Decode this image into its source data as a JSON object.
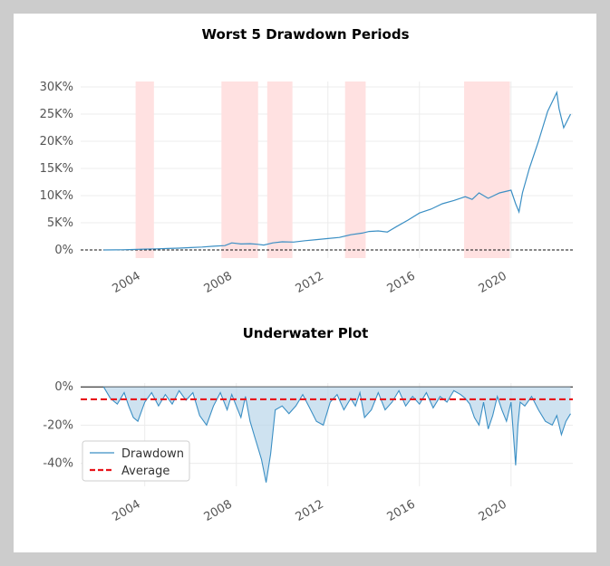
{
  "colors": {
    "line": "#3b8fc4",
    "fill": "#b9d6ea",
    "shade": "#ffe1e1",
    "average": "#e8141b",
    "grid": "#ececec",
    "zero": "#111111"
  },
  "chart_data": [
    {
      "type": "line",
      "title": "Worst 5 Drawdown Periods",
      "xlabel": "",
      "ylabel": "",
      "xlim": [
        2001.2,
        2022.7
      ],
      "ylim": [
        -1500,
        31000
      ],
      "x_ticks": [
        2004,
        2008,
        2012,
        2016,
        2020
      ],
      "x_tick_labels": [
        "2004",
        "2008",
        "2012",
        "2016",
        "2020"
      ],
      "y_ticks": [
        0,
        5000,
        10000,
        15000,
        20000,
        25000,
        30000
      ],
      "y_tick_labels": [
        "0%",
        "5K%",
        "10K%",
        "15K%",
        "20K%",
        "25K%",
        "30K%"
      ],
      "grid": true,
      "zero_line": true,
      "series": [
        {
          "x": [
            2002.2,
            2003.0,
            2003.5,
            2004.0,
            2004.5,
            2005.0,
            2005.5,
            2006.0,
            2006.5,
            2007.0,
            2007.5,
            2007.8,
            2008.2,
            2008.6,
            2008.9,
            2009.2,
            2009.6,
            2010.0,
            2010.5,
            2011.0,
            2011.5,
            2012.0,
            2012.5,
            2013.0,
            2013.5,
            2013.8,
            2014.2,
            2014.6,
            2015.0,
            2015.5,
            2016.0,
            2016.5,
            2017.0,
            2017.5,
            2018.0,
            2018.3,
            2018.6,
            2019.0,
            2019.5,
            2020.0,
            2020.2,
            2020.35,
            2020.5,
            2020.8,
            2021.2,
            2021.6,
            2022.0,
            2022.1,
            2022.3,
            2022.6
          ],
          "values": [
            0,
            30,
            80,
            150,
            200,
            260,
            330,
            430,
            530,
            680,
            800,
            1300,
            1100,
            1150,
            1050,
            900,
            1300,
            1500,
            1450,
            1700,
            1900,
            2100,
            2300,
            2800,
            3100,
            3400,
            3500,
            3300,
            4300,
            5500,
            6800,
            7500,
            8500,
            9100,
            9800,
            9300,
            10500,
            9500,
            10500,
            11000,
            8500,
            7000,
            10500,
            15000,
            20000,
            25500,
            29000,
            26000,
            22500,
            25000
          ]
        }
      ],
      "shaded_periods": [
        [
          2003.6,
          2004.4
        ],
        [
          2007.35,
          2008.95
        ],
        [
          2009.35,
          2010.45
        ],
        [
          2012.75,
          2013.65
        ],
        [
          2017.95,
          2019.95
        ]
      ]
    },
    {
      "type": "area",
      "title": "Underwater Plot",
      "xlabel": "",
      "ylabel": "",
      "xlim": [
        2001.2,
        2022.7
      ],
      "ylim": [
        -0.52,
        0.02
      ],
      "x_ticks": [
        2004,
        2008,
        2012,
        2016,
        2020
      ],
      "x_tick_labels": [
        "2004",
        "2008",
        "2012",
        "2016",
        "2020"
      ],
      "y_ticks": [
        0,
        -0.2,
        -0.4
      ],
      "y_tick_labels": [
        "0%",
        "-20%",
        "-40%"
      ],
      "grid": true,
      "legend": {
        "placement": "lower-left",
        "entries": [
          "Drawdown",
          "Average"
        ]
      },
      "series": [
        {
          "name": "Drawdown",
          "x": [
            2002.2,
            2002.5,
            2002.8,
            2003.1,
            2003.3,
            2003.5,
            2003.7,
            2004.0,
            2004.3,
            2004.6,
            2004.9,
            2005.2,
            2005.5,
            2005.8,
            2006.1,
            2006.4,
            2006.7,
            2007.0,
            2007.3,
            2007.6,
            2007.8,
            2008.0,
            2008.2,
            2008.4,
            2008.6,
            2008.8,
            2008.9,
            2009.1,
            2009.3,
            2009.5,
            2009.7,
            2010.0,
            2010.3,
            2010.6,
            2010.9,
            2011.2,
            2011.5,
            2011.8,
            2012.1,
            2012.4,
            2012.7,
            2013.0,
            2013.2,
            2013.4,
            2013.6,
            2013.9,
            2014.2,
            2014.5,
            2014.8,
            2015.1,
            2015.4,
            2015.7,
            2016.0,
            2016.3,
            2016.6,
            2016.9,
            2017.2,
            2017.5,
            2017.8,
            2018.0,
            2018.2,
            2018.4,
            2018.6,
            2018.8,
            2019.0,
            2019.2,
            2019.4,
            2019.6,
            2019.8,
            2020.0,
            2020.1,
            2020.2,
            2020.3,
            2020.4,
            2020.6,
            2020.9,
            2021.2,
            2021.5,
            2021.8,
            2022.0,
            2022.2,
            2022.4,
            2022.6
          ],
          "values": [
            0,
            -0.06,
            -0.09,
            -0.03,
            -0.1,
            -0.16,
            -0.18,
            -0.08,
            -0.03,
            -0.1,
            -0.04,
            -0.09,
            -0.02,
            -0.07,
            -0.03,
            -0.15,
            -0.2,
            -0.1,
            -0.03,
            -0.12,
            -0.04,
            -0.1,
            -0.16,
            -0.05,
            -0.18,
            -0.26,
            -0.3,
            -0.38,
            -0.5,
            -0.35,
            -0.12,
            -0.1,
            -0.14,
            -0.1,
            -0.04,
            -0.11,
            -0.18,
            -0.2,
            -0.08,
            -0.04,
            -0.12,
            -0.06,
            -0.1,
            -0.03,
            -0.16,
            -0.12,
            -0.03,
            -0.12,
            -0.08,
            -0.02,
            -0.1,
            -0.05,
            -0.09,
            -0.03,
            -0.11,
            -0.05,
            -0.08,
            -0.02,
            -0.04,
            -0.06,
            -0.09,
            -0.16,
            -0.2,
            -0.08,
            -0.22,
            -0.15,
            -0.05,
            -0.12,
            -0.18,
            -0.08,
            -0.24,
            -0.41,
            -0.2,
            -0.08,
            -0.1,
            -0.05,
            -0.12,
            -0.18,
            -0.2,
            -0.15,
            -0.25,
            -0.18,
            -0.14
          ]
        },
        {
          "name": "Average",
          "value": -0.065
        }
      ]
    }
  ]
}
